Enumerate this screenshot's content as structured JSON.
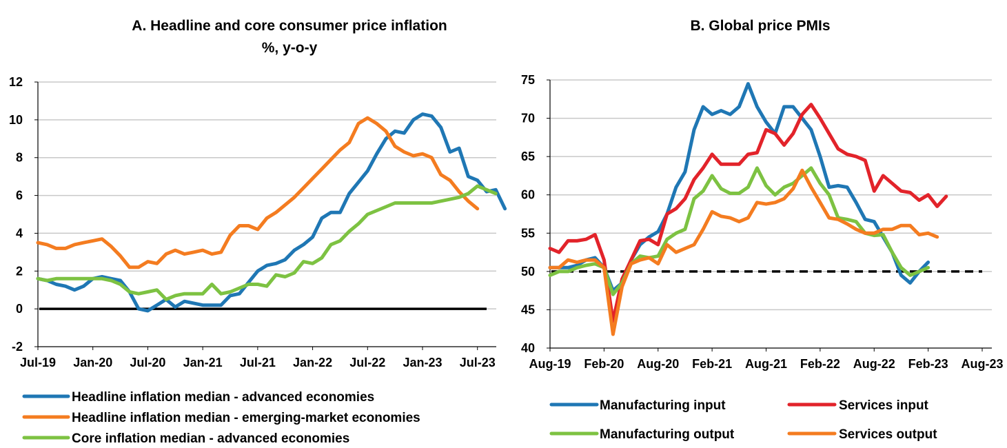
{
  "chart_data": [
    {
      "id": "A",
      "type": "line",
      "title": "A. Headline and core consumer price inflation",
      "subtitle": "%, y-o-y",
      "xlabel": "",
      "ylabel": "",
      "ylim": [
        -2,
        12
      ],
      "yticks": [
        12,
        10,
        8,
        6,
        4,
        2,
        0,
        -2
      ],
      "xticks": [
        "Jul-19",
        "Jan-20",
        "Jul-20",
        "Jan-21",
        "Jul-21",
        "Jan-22",
        "Jul-22",
        "Jan-23",
        "Jul-23"
      ],
      "x_start": "2019-07",
      "x_end": "2023-08",
      "grid": true,
      "reference_line": {
        "y": 0,
        "style": "solid",
        "color": "#000000"
      },
      "legend_position": "bottom",
      "series": [
        {
          "name": "Headline inflation median - advanced economies",
          "color": "#1f77b4",
          "values": [
            1.6,
            1.5,
            1.3,
            1.2,
            1.0,
            1.2,
            1.6,
            1.7,
            1.6,
            1.5,
            0.9,
            0.0,
            -0.1,
            0.2,
            0.5,
            0.1,
            0.4,
            0.3,
            0.2,
            0.2,
            0.2,
            0.7,
            0.8,
            1.4,
            2.0,
            2.3,
            2.4,
            2.6,
            3.1,
            3.4,
            3.8,
            4.8,
            5.1,
            5.1,
            6.1,
            6.7,
            7.3,
            8.2,
            9.0,
            9.4,
            9.3,
            10.0,
            10.3,
            10.2,
            9.6,
            8.3,
            8.5,
            7.0,
            6.8,
            6.2,
            6.3,
            5.3
          ]
        },
        {
          "name": "Headline inflation median - emerging-market economies",
          "color": "#f47c20",
          "values": [
            3.5,
            3.4,
            3.2,
            3.2,
            3.4,
            3.5,
            3.6,
            3.7,
            3.3,
            2.8,
            2.2,
            2.2,
            2.5,
            2.4,
            2.9,
            3.1,
            2.9,
            3.0,
            3.1,
            2.9,
            3.0,
            3.9,
            4.4,
            4.4,
            4.2,
            4.8,
            5.1,
            5.5,
            5.9,
            6.4,
            6.9,
            7.4,
            7.9,
            8.4,
            8.8,
            9.8,
            10.1,
            9.8,
            9.4,
            8.6,
            8.3,
            8.1,
            8.2,
            8.0,
            7.1,
            6.8,
            6.2,
            5.7,
            5.3
          ]
        },
        {
          "name": "Core inflation median - advanced economies",
          "color": "#7dc242",
          "values": [
            1.6,
            1.5,
            1.6,
            1.6,
            1.6,
            1.6,
            1.6,
            1.6,
            1.5,
            1.3,
            0.9,
            0.8,
            0.9,
            1.0,
            0.5,
            0.7,
            0.8,
            0.8,
            0.8,
            1.3,
            0.8,
            0.9,
            1.1,
            1.3,
            1.3,
            1.2,
            1.8,
            1.7,
            1.9,
            2.5,
            2.4,
            2.7,
            3.4,
            3.6,
            4.1,
            4.5,
            5.0,
            5.2,
            5.4,
            5.6,
            5.6,
            5.6,
            5.6,
            5.6,
            5.7,
            5.8,
            5.9,
            6.1,
            6.5,
            6.3,
            6.1
          ]
        }
      ]
    },
    {
      "id": "B",
      "type": "line",
      "title": "B. Global price PMIs",
      "xlabel": "",
      "ylabel": "",
      "ylim": [
        40,
        75
      ],
      "yticks": [
        75,
        70,
        65,
        60,
        55,
        50,
        45,
        40
      ],
      "xticks": [
        "Aug-19",
        "Feb-20",
        "Aug-20",
        "Feb-21",
        "Aug-21",
        "Feb-22",
        "Aug-22",
        "Feb-23",
        "Aug-23"
      ],
      "x_start": "2019-08",
      "x_end": "2023-08",
      "grid": true,
      "reference_line": {
        "y": 50,
        "style": "dashed",
        "color": "#000000"
      },
      "legend_position": "bottom",
      "series": [
        {
          "name": "Manufacturing input",
          "color": "#1f77b4",
          "values": [
            50.5,
            50.5,
            50.5,
            50.8,
            51.5,
            51.8,
            50.5,
            47.5,
            48.5,
            51.5,
            53.5,
            54.5,
            55.2,
            57.5,
            61.0,
            63.0,
            68.5,
            71.5,
            70.5,
            71.0,
            70.5,
            71.5,
            74.5,
            71.5,
            69.5,
            68.0,
            71.5,
            71.5,
            70.0,
            68.5,
            65.0,
            61.0,
            61.2,
            61.0,
            59.0,
            56.8,
            56.5,
            54.5,
            52.5,
            49.5,
            48.5,
            50.0,
            51.2
          ]
        },
        {
          "name": "Services input",
          "color": "#e2232a",
          "values": [
            53.0,
            52.5,
            54.0,
            54.0,
            54.2,
            54.8,
            51.5,
            43.5,
            49.0,
            51.5,
            54.0,
            54.2,
            53.5,
            57.5,
            58.2,
            59.5,
            62.0,
            63.5,
            65.3,
            64.0,
            64.0,
            64.0,
            65.3,
            65.5,
            68.5,
            68.0,
            66.5,
            68.0,
            70.5,
            71.8,
            70.0,
            68.0,
            66.0,
            65.3,
            65.0,
            64.5,
            60.5,
            62.5,
            61.5,
            60.5,
            60.3,
            59.3,
            60.0,
            58.5,
            59.8
          ]
        },
        {
          "name": "Manufacturing output",
          "color": "#7dc242",
          "values": [
            49.5,
            50.0,
            50.0,
            50.5,
            50.8,
            51.0,
            50.5,
            47.0,
            48.5,
            51.0,
            52.0,
            51.8,
            52.0,
            54.2,
            55.0,
            55.5,
            59.5,
            60.5,
            62.5,
            60.8,
            60.2,
            60.2,
            61.0,
            63.5,
            61.2,
            60.0,
            61.0,
            61.5,
            62.5,
            63.5,
            61.5,
            60.0,
            57.0,
            56.8,
            56.5,
            55.0,
            54.7,
            54.8,
            52.5,
            50.5,
            49.5,
            50.0,
            50.5
          ]
        },
        {
          "name": "Services output",
          "color": "#f47c20",
          "values": [
            50.5,
            50.5,
            51.5,
            51.2,
            51.5,
            51.5,
            50.5,
            41.8,
            48.0,
            51.0,
            51.5,
            51.8,
            51.0,
            53.5,
            52.5,
            53.0,
            53.5,
            55.5,
            57.8,
            57.2,
            57.0,
            56.5,
            57.0,
            59.0,
            58.8,
            59.0,
            59.5,
            60.8,
            63.2,
            61.0,
            59.0,
            57.0,
            56.8,
            56.2,
            55.5,
            55.0,
            55.0,
            55.5,
            55.5,
            56.0,
            56.0,
            54.8,
            55.0,
            54.5
          ]
        }
      ]
    }
  ]
}
